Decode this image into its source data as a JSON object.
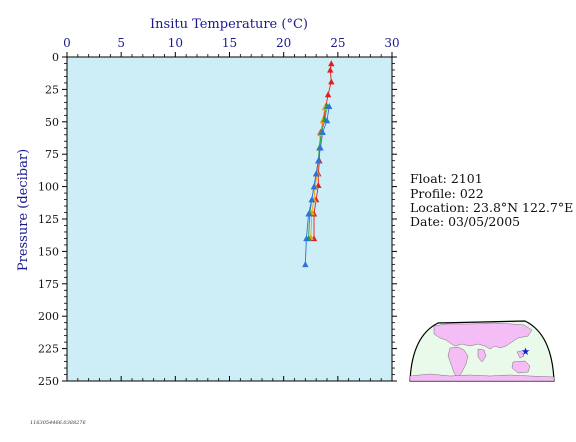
{
  "chart_data": {
    "type": "line",
    "title": "",
    "xlabel": "Insitu Temperature (°C)",
    "ylabel": "Pressure (decibar)",
    "xlim": [
      0,
      30
    ],
    "ylim": [
      0,
      250
    ],
    "y_inverted": true,
    "x_axis_position": "top",
    "x_ticks": [
      "0",
      "5",
      "10",
      "15",
      "20",
      "25",
      "30"
    ],
    "y_ticks": [
      "0",
      "25",
      "50",
      "75",
      "100",
      "125",
      "150",
      "175",
      "200",
      "225",
      "250"
    ],
    "grid": false,
    "background_color": "#cdeef6",
    "series": [
      {
        "color": "#e02020",
        "marker": "triangle",
        "points": [
          [
            24.4,
            5
          ],
          [
            24.3,
            10
          ],
          [
            24.4,
            19
          ],
          [
            24.1,
            29
          ],
          [
            23.9,
            38
          ],
          [
            23.7,
            48
          ],
          [
            23.4,
            58
          ],
          [
            23.3,
            70
          ],
          [
            23.3,
            80
          ],
          [
            23.2,
            90
          ],
          [
            23.2,
            99
          ],
          [
            23.0,
            110
          ],
          [
            22.8,
            121
          ],
          [
            22.8,
            140
          ]
        ]
      },
      {
        "color": "#f0a020",
        "marker": "triangle",
        "points": [
          [
            23.8,
            39
          ],
          [
            23.6,
            49
          ],
          [
            23.4,
            59
          ],
          [
            23.3,
            70
          ],
          [
            23.2,
            80
          ],
          [
            23.1,
            90
          ],
          [
            22.9,
            100
          ],
          [
            22.8,
            110
          ],
          [
            22.6,
            120
          ],
          [
            22.5,
            139
          ]
        ]
      },
      {
        "color": "#20a040",
        "marker": "triangle",
        "points": [
          [
            24.0,
            38
          ],
          [
            23.8,
            48
          ],
          [
            23.5,
            58
          ],
          [
            23.3,
            70
          ],
          [
            23.2,
            80
          ],
          [
            23.0,
            90
          ],
          [
            22.8,
            100
          ],
          [
            22.6,
            110
          ],
          [
            22.4,
            121
          ],
          [
            22.3,
            140
          ]
        ]
      },
      {
        "color": "#3070e0",
        "marker": "triangle",
        "points": [
          [
            24.2,
            38
          ],
          [
            24.0,
            49
          ],
          [
            23.6,
            58
          ],
          [
            23.4,
            70
          ],
          [
            23.2,
            80
          ],
          [
            23.0,
            90
          ],
          [
            22.8,
            100
          ],
          [
            22.6,
            110
          ],
          [
            22.3,
            121
          ],
          [
            22.1,
            140
          ],
          [
            22.0,
            160
          ]
        ]
      }
    ]
  },
  "info": {
    "float": "Float:  2101",
    "profile": "Profile:  022",
    "location": "Location:  23.8°N  122.7°E",
    "date": "Date:  03/05/2005"
  },
  "map": {
    "ocean_color": "#eafaea",
    "land_color": "#f5bdf5",
    "marker_color": "#1a1ad0",
    "marker_icon": "star-icon"
  },
  "footer": {
    "code": "1163054466.0388276"
  }
}
